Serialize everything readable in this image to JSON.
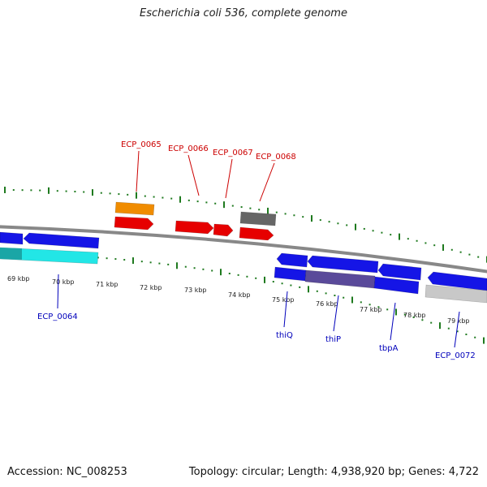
{
  "title": "Escherichia coli 536, complete genome",
  "footer": {
    "accession": "Accession: NC_008253",
    "stats": "Topology: circular; Length: 4,938,920 bp; Genes: 4,722"
  },
  "colors": {
    "background": "#ffffff",
    "forward_label": "#cc0000",
    "reverse_label": "#0000bb",
    "tick_major": "#1f7a1f",
    "backbone": "#888888",
    "cds": "#e60000",
    "cds_reverse": "#1515e6",
    "gene_orange": "#f08c00",
    "gene_gray": "#666666",
    "gene_cyan": "#22e6e6",
    "gene_light_gray": "#c8c8c8",
    "overlap_purple": "#5a4a9a"
  },
  "scale": {
    "labels": [
      "69 kbp",
      "70 kbp",
      "71 kbp",
      "72 kbp",
      "73 kbp",
      "74 kbp",
      "75 kbp",
      "76 kbp",
      "77 kbp",
      "78 kbp",
      "79 kbp"
    ]
  },
  "forward_genes": [
    {
      "label": "ECP_0065",
      "color_key": "gene_orange"
    },
    {
      "label": "ECP_0066",
      "color_key": "cds"
    },
    {
      "label": "ECP_0067",
      "color_key": "cds"
    },
    {
      "label": "ECP_0068",
      "color_key": "gene_gray"
    }
  ],
  "reverse_genes": [
    {
      "label": "ECP_0064",
      "color_key": "gene_cyan"
    },
    {
      "label": "thiQ",
      "color_key": "cds_reverse"
    },
    {
      "label": "thiP",
      "color_key": "cds_reverse"
    },
    {
      "label": "tbpA",
      "color_key": "cds_reverse"
    },
    {
      "label": "ECP_0072",
      "color_key": "gene_light_gray"
    }
  ]
}
